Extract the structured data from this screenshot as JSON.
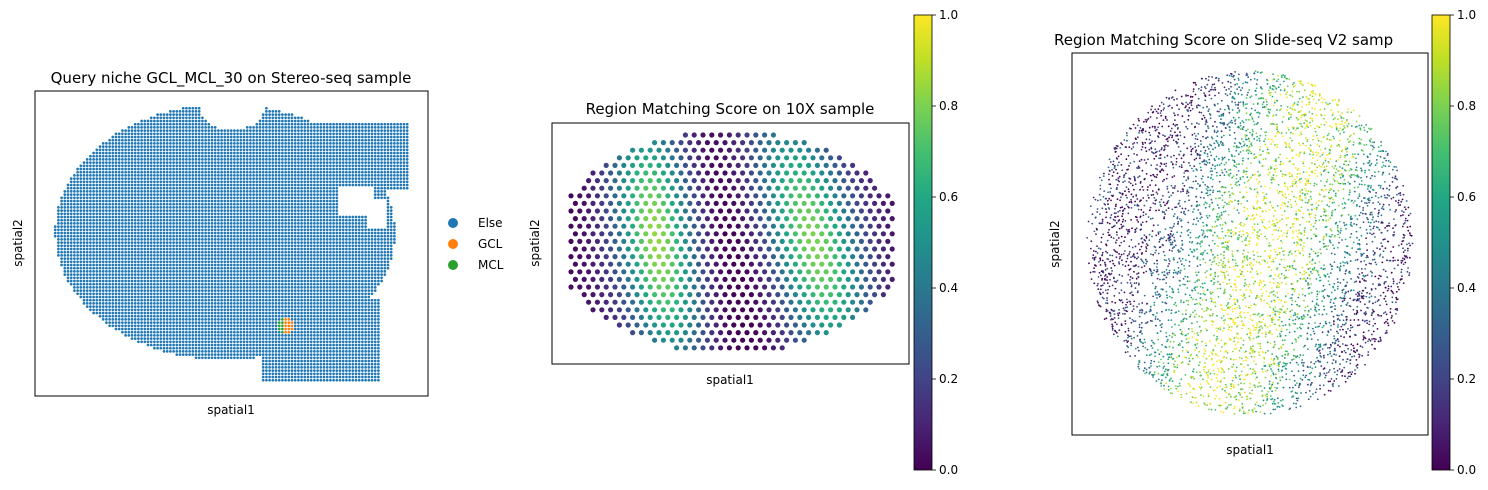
{
  "chart_data": [
    {
      "type": "scatter",
      "title": "Query niche GCL_MCL_30 on Stereo-seq sample",
      "xlabel": "spatial1",
      "ylabel": "spatial2",
      "legend_position": "right",
      "series": [
        {
          "name": "Else",
          "color": "#1f77b4",
          "description": "grid of spots covering the tissue section"
        },
        {
          "name": "GCL",
          "color": "#ff7f0e",
          "description": "small cluster near bottom center"
        },
        {
          "name": "MCL",
          "color": "#2ca02c",
          "description": "small cluster adjacent to GCL"
        }
      ]
    },
    {
      "type": "scatter",
      "title": "Region Matching Score on 10X sample",
      "xlabel": "spatial1",
      "ylabel": "spatial2",
      "colormap": "viridis",
      "colorbar": {
        "min": 0.0,
        "max": 1.0,
        "ticks": [
          "0.0",
          "0.2",
          "0.4",
          "0.6",
          "0.8",
          "1.0"
        ]
      }
    },
    {
      "type": "scatter",
      "title": "Region Matching Score on Slide-seq V2 samp",
      "xlabel": "spatial1",
      "ylabel": "spatial2",
      "colormap": "viridis",
      "colorbar": {
        "min": 0.0,
        "max": 1.0,
        "ticks": [
          "0.0",
          "0.2",
          "0.4",
          "0.6",
          "0.8",
          "1.0"
        ]
      }
    }
  ]
}
